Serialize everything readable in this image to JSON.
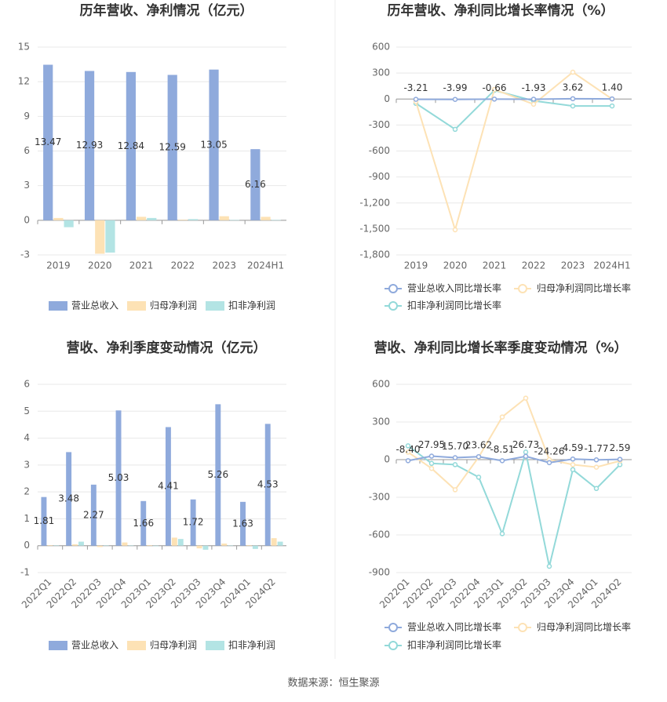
{
  "chart_data": [
    {
      "type": "bar",
      "title": "历年营收、净利情况（亿元）",
      "categories": [
        "2019",
        "2020",
        "2021",
        "2022",
        "2023",
        "2024H1"
      ],
      "ylim": [
        -3,
        15
      ],
      "yticks": [
        -3,
        0,
        3,
        6,
        9,
        12,
        15
      ],
      "grid": true,
      "series": [
        {
          "name": "营业总收入",
          "color": "#8faadc",
          "show_labels": true,
          "values": [
            13.47,
            12.93,
            12.84,
            12.59,
            13.05,
            6.16
          ]
        },
        {
          "name": "归母净利润",
          "color": "#fde2b5",
          "values": [
            0.2,
            -2.9,
            0.3,
            0.05,
            0.35,
            0.3
          ]
        },
        {
          "name": "扣非净利润",
          "color": "#b3e4e4",
          "values": [
            -0.6,
            -2.8,
            0.2,
            0.1,
            0.02,
            0.02
          ]
        }
      ]
    },
    {
      "type": "line",
      "title": "历年营收、净利同比增长率情况（%）",
      "categories": [
        "2019",
        "2020",
        "2021",
        "2022",
        "2023",
        "2024H1"
      ],
      "ylim": [
        -1800,
        600
      ],
      "yticks": [
        {
          "value": -1800,
          "label": "-1,800"
        },
        {
          "value": -1500,
          "label": "-1,500"
        },
        {
          "value": -1200,
          "label": "-1,200"
        },
        -900,
        -600,
        -300,
        0,
        300,
        600
      ],
      "grid": true,
      "series": [
        {
          "name": "营业总收入同比增长率",
          "color": "#8faadc",
          "values": [
            -3.21,
            -3.99,
            -0.66,
            -1.93,
            3.62,
            1.4
          ],
          "value_labels": [
            "-3.21",
            "-3.99",
            "-0.66",
            "-1.93",
            "3.62",
            "1.40"
          ]
        },
        {
          "name": "归母净利润同比增长率",
          "color": "#fde2b5",
          "values": [
            -30,
            -1510,
            110,
            -60,
            310,
            0
          ]
        },
        {
          "name": "扣非净利润同比增长率",
          "color": "#93d9d9",
          "values": [
            -50,
            -350,
            100,
            -20,
            -80,
            -80
          ]
        }
      ]
    },
    {
      "type": "bar",
      "title": "营收、净利季度变动情况（亿元）",
      "categories": [
        "2022Q1",
        "2022Q2",
        "2022Q3",
        "2022Q4",
        "2023Q1",
        "2023Q2",
        "2023Q3",
        "2023Q4",
        "2024Q1",
        "2024Q2"
      ],
      "ylim": [
        -1,
        6
      ],
      "yticks": [
        -1,
        0,
        1,
        2,
        3,
        4,
        5,
        6
      ],
      "grid": true,
      "series": [
        {
          "name": "营业总收入",
          "color": "#8faadc",
          "show_labels": true,
          "values": [
            1.81,
            3.48,
            2.27,
            5.03,
            1.66,
            4.41,
            1.72,
            5.26,
            1.63,
            4.53
          ]
        },
        {
          "name": "归母净利润",
          "color": "#fde2b5",
          "values": [
            0.02,
            0.05,
            -0.05,
            0.12,
            0.02,
            0.3,
            -0.1,
            0.08,
            0.02,
            0.28
          ]
        },
        {
          "name": "扣非净利润",
          "color": "#b3e4e4",
          "values": [
            0.01,
            0.15,
            0.01,
            0.01,
            -0.02,
            0.25,
            -0.15,
            0.01,
            -0.12,
            0.15
          ]
        }
      ]
    },
    {
      "type": "line",
      "title": "营收、净利同比增长率季度变动情况（%）",
      "categories": [
        "2022Q1",
        "2022Q2",
        "2022Q3",
        "2022Q4",
        "2023Q1",
        "2023Q2",
        "2023Q3",
        "2023Q4",
        "2024Q1",
        "2024Q2"
      ],
      "ylim": [
        -900,
        600
      ],
      "yticks": [
        -900,
        -600,
        -300,
        0,
        300,
        600
      ],
      "grid": true,
      "series": [
        {
          "name": "营业总收入同比增长率",
          "color": "#8faadc",
          "values": [
            -8.4,
            27.95,
            15.7,
            23.62,
            -8.51,
            26.73,
            -24.26,
            4.59,
            -1.77,
            2.59
          ],
          "value_labels": [
            "-8.40",
            "27.95",
            "15.70",
            "23.62",
            "-8.51",
            "26.73",
            "-24.26",
            "4.59",
            "-1.77",
            "2.59"
          ]
        },
        {
          "name": "归母净利润同比增长率",
          "color": "#fde2b5",
          "values": [
            60,
            -70,
            -240,
            20,
            340,
            490,
            0,
            -40,
            -60,
            -10
          ]
        },
        {
          "name": "扣非净利润同比增长率",
          "color": "#93d9d9",
          "values": [
            110,
            -30,
            -40,
            -140,
            -590,
            60,
            -850,
            -80,
            -230,
            -40
          ]
        }
      ]
    }
  ],
  "source": "数据来源：恒生聚源"
}
